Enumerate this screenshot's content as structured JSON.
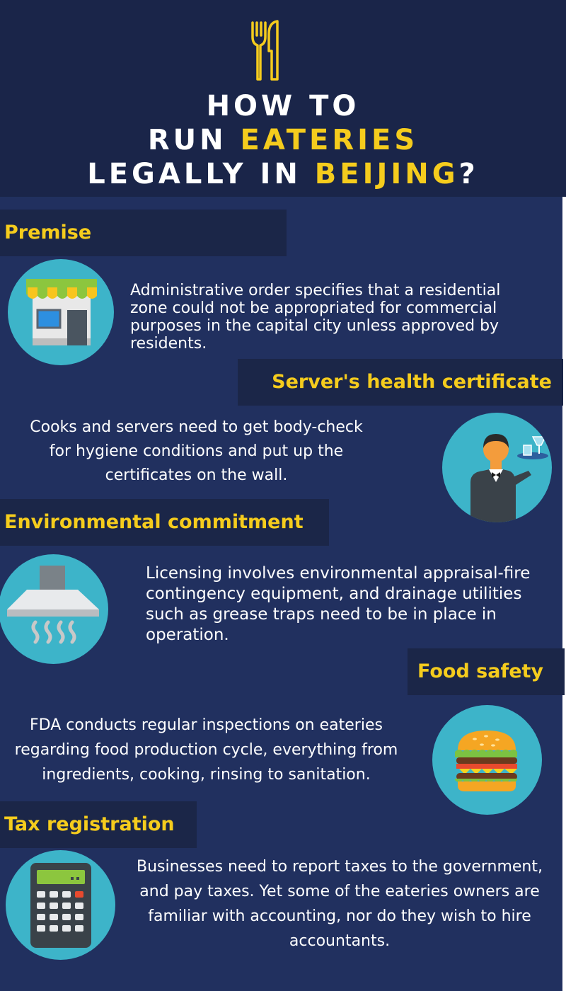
{
  "header": {
    "title_line1": "HOW TO",
    "title_line2_prefix": "RUN ",
    "title_line2_highlight": "EATERIES",
    "title_line3_prefix": "LEGALLY IN ",
    "title_line3_highlight": "BEIJING",
    "title_line3_suffix": "?",
    "icon": "fork-knife-icon"
  },
  "colors": {
    "background": "#21305f",
    "band": "#1b2648",
    "accent": "#f5cc1d",
    "icon_circle": "#3db4c9",
    "text": "#ffffff"
  },
  "sections": [
    {
      "heading": "Premise",
      "icon": "storefront-icon",
      "text": "Administrative order specifies that a residential zone could not be appropriated for commercial purposes in the capital city unless approved by residents."
    },
    {
      "heading": "Server's health certificate",
      "icon": "waiter-icon",
      "text": "Cooks and servers need to get body-check for hygiene conditions and put up the certificates on the wall."
    },
    {
      "heading": "Environmental commitment",
      "icon": "range-hood-icon",
      "text": "Licensing involves environmental appraisal-fire contingency equipment, and drainage utilities such as grease traps need to be in place in operation."
    },
    {
      "heading": "Food safety",
      "icon": "burger-icon",
      "text": "FDA conducts regular inspections on eateries regarding food production cycle, everything from ingredients, cooking, rinsing to sanitation."
    },
    {
      "heading": "Tax registration",
      "icon": "calculator-icon",
      "text": "Businesses need to report taxes to the government, and pay taxes. Yet some of the eateries owners are familiar with accounting, nor do they wish to hire accountants."
    }
  ]
}
